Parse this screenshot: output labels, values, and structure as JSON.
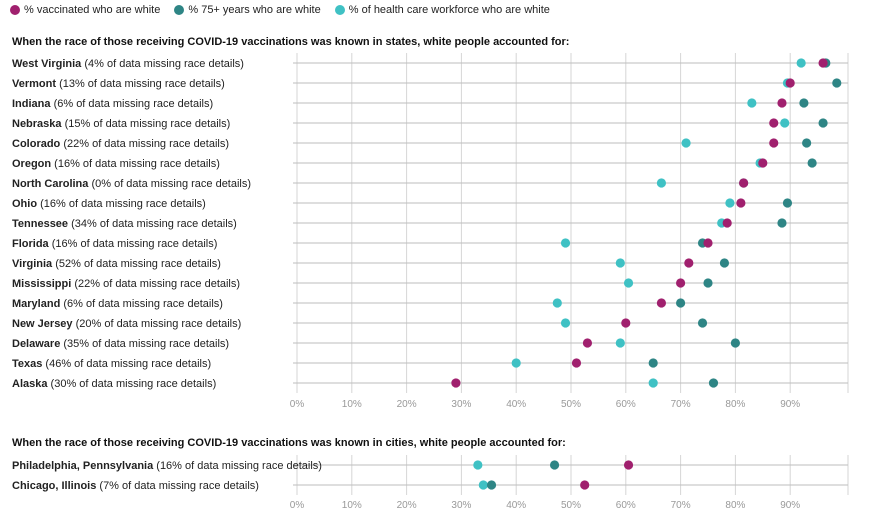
{
  "legend": [
    {
      "label": "% vaccinated who are white",
      "color": "#a0206e"
    },
    {
      "label": "% 75+ years who are white",
      "color": "#2e8585"
    },
    {
      "label": "% of health care workforce who are white",
      "color": "#3fc1c4"
    }
  ],
  "chart_data": [
    {
      "type": "scatter",
      "title": "When the race of those receiving COVID-19 vaccinations was known in states, white people accounted for:",
      "xlim": [
        0,
        100
      ],
      "x_ticks": [
        "0%",
        "10%",
        "20%",
        "30%",
        "40%",
        "50%",
        "60%",
        "70%",
        "80%",
        "90%"
      ],
      "rows": [
        {
          "name": "West Virginia",
          "note": " (4% of data missing race details)",
          "vaccinated": 96,
          "age75": 96.5,
          "health": 92
        },
        {
          "name": "Vermont",
          "note": " (13% of data missing race details)",
          "vaccinated": 90,
          "age75": 98.5,
          "health": 89.5
        },
        {
          "name": "Indiana",
          "note": " (6% of data missing race details)",
          "vaccinated": 88.5,
          "age75": 92.5,
          "health": 83
        },
        {
          "name": "Nebraska",
          "note": " (15% of data missing race details)",
          "vaccinated": 87,
          "age75": 96,
          "health": 89
        },
        {
          "name": "Colorado",
          "note": " (22% of data missing race details)",
          "vaccinated": 87,
          "age75": 93,
          "health": 71
        },
        {
          "name": "Oregon",
          "note": " (16% of data missing race details)",
          "vaccinated": 85,
          "age75": 94,
          "health": 84.5
        },
        {
          "name": "North Carolina",
          "note": " (0% of data missing race details)",
          "vaccinated": 81.5,
          "age75": 81.5,
          "health": 66.5
        },
        {
          "name": "Ohio",
          "note": " (16% of data missing race details)",
          "vaccinated": 81,
          "age75": 89.5,
          "health": 79
        },
        {
          "name": "Tennessee",
          "note": " (34% of data missing race details)",
          "vaccinated": 78.5,
          "age75": 88.5,
          "health": 77.5
        },
        {
          "name": "Florida",
          "note": " (16% of data missing race details)",
          "vaccinated": 75,
          "age75": 74,
          "health": 49
        },
        {
          "name": "Virginia",
          "note": " (52% of data missing race details)",
          "vaccinated": 71.5,
          "age75": 78,
          "health": 59
        },
        {
          "name": "Mississippi",
          "note": " (22% of data missing race details)",
          "vaccinated": 70,
          "age75": 75,
          "health": 60.5
        },
        {
          "name": "Maryland",
          "note": " (6% of data missing race details)",
          "vaccinated": 66.5,
          "age75": 70,
          "health": 47.5
        },
        {
          "name": "New Jersey",
          "note": " (20% of data missing race details)",
          "vaccinated": 60,
          "age75": 74,
          "health": 49
        },
        {
          "name": "Delaware",
          "note": " (35% of data missing race details)",
          "vaccinated": 53,
          "age75": 80,
          "health": 59
        },
        {
          "name": "Texas",
          "note": " (46% of data missing race details)",
          "vaccinated": 51,
          "age75": 65,
          "health": 40
        },
        {
          "name": "Alaska",
          "note": " (30% of data missing race details)",
          "vaccinated": 29,
          "age75": 76,
          "health": 65
        }
      ]
    },
    {
      "type": "scatter",
      "title": "When the race of those receiving COVID-19 vaccinations was known in cities, white people accounted for:",
      "xlim": [
        0,
        100
      ],
      "x_ticks": [
        "0%",
        "10%",
        "20%",
        "30%",
        "40%",
        "50%",
        "60%",
        "70%",
        "80%",
        "90%"
      ],
      "rows": [
        {
          "name": "Philadelphia, Pennsylvania",
          "note": " (16% of data missing race details)",
          "vaccinated": 60.5,
          "age75": 47,
          "health": 33
        },
        {
          "name": "Chicago, Illinois",
          "note": " (7% of data missing race details)",
          "vaccinated": 52.5,
          "age75": 35.5,
          "health": 34
        }
      ]
    }
  ]
}
